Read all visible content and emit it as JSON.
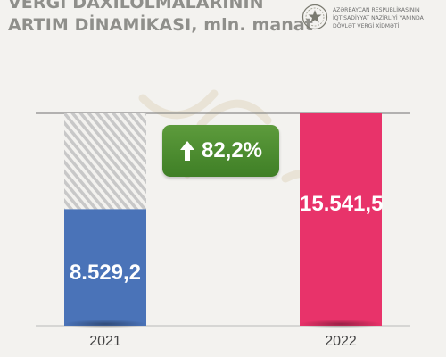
{
  "header": {
    "title_line1": "VERGİ DAXİLOLMALARININ",
    "title_line2": "ARTIM DİNAMİKASI, mln. manat"
  },
  "org": {
    "line1": "AZƏRBAYCAN RESPUBLİKASININ",
    "line2": "İQTİSADİYYAT NAZİRLİYİ YANINDA",
    "line3": "DÖVLƏT VERGİ XİDMƏTİ"
  },
  "badge": {
    "text": "82,2%",
    "icon": "arrow-up-icon"
  },
  "colors": {
    "bar_2021": "#4a73b8",
    "bar_2022": "#e8336a",
    "badge": "#4e8d31"
  },
  "chart_data": {
    "type": "bar",
    "categories": [
      "2021",
      "2022"
    ],
    "values": [
      8529.2,
      15541.5
    ],
    "value_labels": [
      "8.529,2",
      "15.541,5"
    ],
    "title": "VERGİ DAXİLOLMALARININ ARTIM DİNAMİKASI, mln. manat",
    "xlabel": "",
    "ylabel": "",
    "ylim": [
      0,
      15541.5
    ],
    "grid": false
  }
}
